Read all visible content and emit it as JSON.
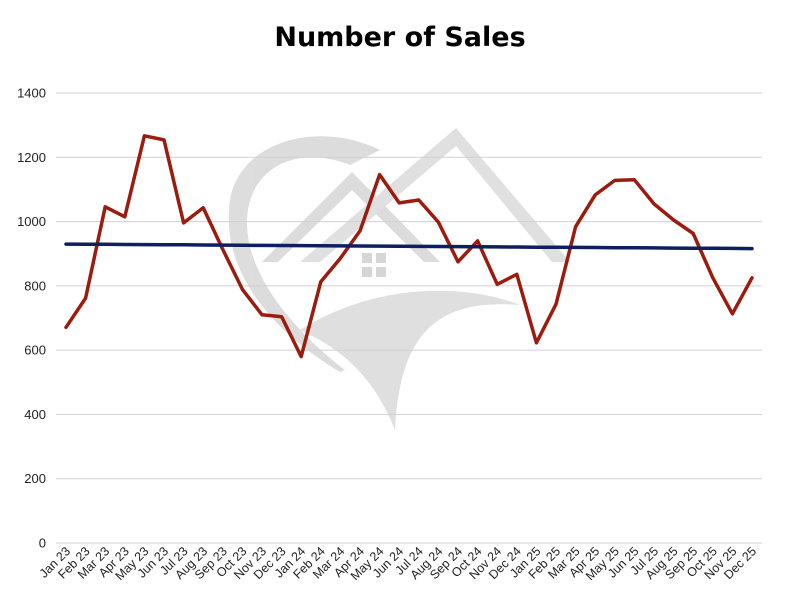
{
  "chart_data": {
    "type": "line",
    "title": "Number of Sales",
    "xlabel": "",
    "ylabel": "",
    "ylim": [
      0,
      1400
    ],
    "yticks": [
      0,
      200,
      400,
      600,
      800,
      1000,
      1200,
      1400
    ],
    "grid": true,
    "legend": "none",
    "categories": [
      "Jan 23",
      "Feb 23",
      "Mar 23",
      "Apr 23",
      "May 23",
      "Jun 23",
      "Jul 23",
      "Aug 23",
      "Sep 23",
      "Oct 23",
      "Nov 23",
      "Dec 23",
      "Jan 24",
      "Feb 24",
      "Mar 24",
      "Apr 24",
      "May 24",
      "Jun 24",
      "Jul 24",
      "Aug 24",
      "Sep 24",
      "Oct 24",
      "Nov 24",
      "Dec 24",
      "Jan 25",
      "Feb 25",
      "Mar 25",
      "Apr 25",
      "May 25",
      "Jun 25",
      "Jul 25",
      "Aug 25",
      "Sep 25",
      "Oct 25",
      "Nov 25",
      "Dec 25"
    ],
    "series": [
      {
        "color": "#9b1c0e",
        "values": [
          671,
          762,
          1046,
          1015,
          1267,
          1254,
          996,
          1043,
          913,
          789,
          710,
          704,
          580,
          813,
          886,
          971,
          1146,
          1058,
          1067,
          998,
          875,
          940,
          805,
          836,
          623,
          743,
          984,
          1083,
          1128,
          1130,
          1055,
          1005,
          963,
          825,
          713,
          825
        ]
      },
      {
        "color": "#0e1f5f",
        "kind": "trendline",
        "values": [
          930,
          929.6,
          929.2,
          928.8,
          928.4,
          928,
          927.6,
          927.2,
          926.8,
          926.4,
          926,
          925.6,
          925.2,
          924.8,
          924.4,
          924,
          923.6,
          923.2,
          922.8,
          922.4,
          922,
          921.6,
          921.2,
          920.8,
          920.4,
          920,
          919.6,
          919.2,
          918.8,
          918.4,
          918,
          917.6,
          917.2,
          916.8,
          916.4,
          916
        ]
      }
    ]
  },
  "colors": {
    "grid": "#d0d0d0",
    "watermark": "#d7d7d7"
  },
  "watermark_icon": "house-roof-logo-watermark"
}
